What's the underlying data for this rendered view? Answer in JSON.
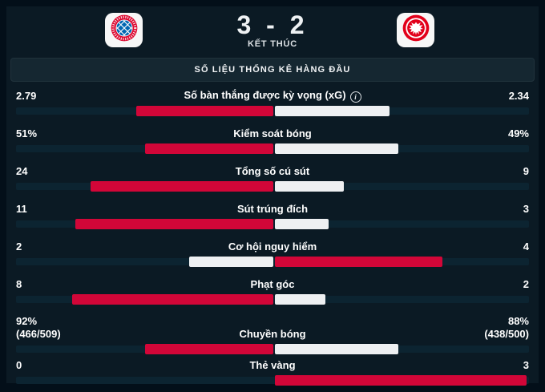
{
  "header": {
    "home_team": "Bayern München",
    "away_team": "Eintracht Frankfurt",
    "score": "3 - 2",
    "status": "KẾT THÚC"
  },
  "section_title": "SỐ LIỆU THỐNG KÊ HÀNG ĐẦU",
  "icons": {
    "home_logo": "bayern-munich-crest",
    "away_logo": "eintracht-frankfurt-crest",
    "stat_info": "info-icon"
  },
  "colors": {
    "win_bar": "#d20638",
    "lose_bar": "#eef0f2",
    "track": "#0c2431",
    "widget_background": "#0b1a24",
    "outer_background": "#030f19",
    "section_bar": "#152731"
  },
  "stats": [
    {
      "label": "Số bàn thắng được kỳ vọng (xG)",
      "info_icon": true,
      "home_display": "2.79",
      "away_display": "2.34",
      "home_value": 2.79,
      "away_value": 2.34
    },
    {
      "label": "Kiểm soát bóng",
      "home_display": "51%",
      "away_display": "49%",
      "home_value": 51,
      "away_value": 49
    },
    {
      "label": "Tổng số cú sút",
      "home_display": "24",
      "away_display": "9",
      "home_value": 24,
      "away_value": 9
    },
    {
      "label": "Sút trúng đích",
      "home_display": "11",
      "away_display": "3",
      "home_value": 11,
      "away_value": 3
    },
    {
      "label": "Cơ hội nguy hiểm",
      "home_display": "2",
      "away_display": "4",
      "home_value": 2,
      "away_value": 4
    },
    {
      "label": "Phạt góc",
      "home_display": "8",
      "away_display": "2",
      "home_value": 8,
      "away_value": 2
    },
    {
      "label": "Chuyền bóng",
      "home_display": "92%",
      "home_sub": "(466/509)",
      "away_display": "88%",
      "away_sub": "(438/500)",
      "home_value": 92,
      "away_value": 88
    },
    {
      "label": "Thẻ vàng",
      "home_display": "0",
      "away_display": "3",
      "home_value": 0,
      "away_value": 3
    }
  ]
}
